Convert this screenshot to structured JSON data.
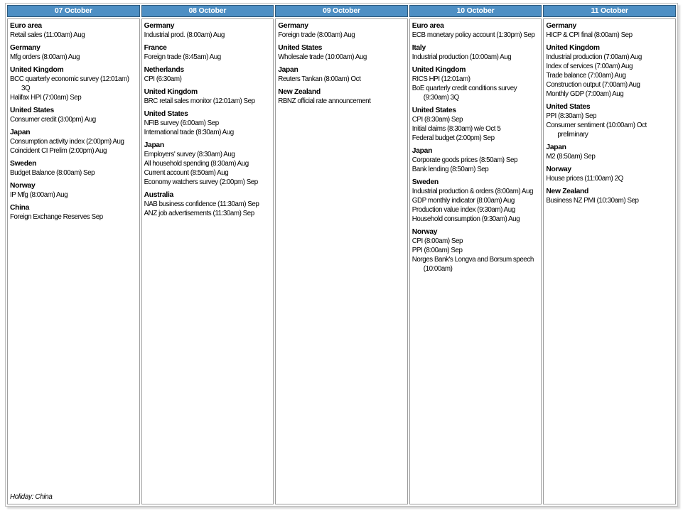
{
  "colors": {
    "header_bg": "#4E8FC4",
    "header_border": "#2e5a7d",
    "header_text": "#ffffff",
    "body_border": "#9e9e9e"
  },
  "table": {
    "columns": [
      {
        "date": "07 October",
        "groups": [
          {
            "country": "Euro area",
            "events": [
              "Retail sales (11:00am) Aug"
            ]
          },
          {
            "country": "Germany",
            "events": [
              "Mfg orders (8:00am) Aug"
            ]
          },
          {
            "country": "United Kingdom",
            "events": [
              "BCC quarterly economic survey (12:01am) 3Q",
              "Halifax HPI (7:00am) Sep"
            ]
          },
          {
            "country": "United States",
            "events": [
              "Consumer credit (3:00pm) Aug"
            ]
          },
          {
            "country": "Japan",
            "events": [
              "Consumption activity index (2:00pm) Aug",
              "Coincident CI Prelim (2:00pm) Aug"
            ]
          },
          {
            "country": "Sweden",
            "events": [
              "Budget Balance (8:00am) Sep"
            ]
          },
          {
            "country": "Norway",
            "events": [
              "IP Mfg (8:00am) Aug"
            ]
          },
          {
            "country": "China",
            "events": [
              "Foreign Exchange Reserves Sep"
            ]
          }
        ],
        "holiday": "Holiday: China"
      },
      {
        "date": "08 October",
        "groups": [
          {
            "country": "Germany",
            "events": [
              "Industrial prod. (8:00am) Aug"
            ]
          },
          {
            "country": "France",
            "events": [
              "Foreign trade (8:45am) Aug"
            ]
          },
          {
            "country": "Netherlands",
            "events": [
              "CPI (6:30am)"
            ]
          },
          {
            "country": "United Kingdom",
            "events": [
              "BRC retail sales monitor (12:01am) Sep"
            ]
          },
          {
            "country": "United States",
            "events": [
              "NFIB survey (6:00am) Sep",
              "International trade (8:30am) Aug"
            ]
          },
          {
            "country": "Japan",
            "events": [
              "Employers' survey (8:30am) Aug",
              "All household spending (8:30am) Aug",
              "Current account (8:50am) Aug",
              "Economy watchers survey (2:00pm) Sep"
            ]
          },
          {
            "country": "Australia",
            "events": [
              "NAB business confidence (11:30am) Sep",
              "ANZ job advertisements (11:30am) Sep"
            ]
          }
        ]
      },
      {
        "date": "09 October",
        "groups": [
          {
            "country": "Germany",
            "events": [
              "Foreign trade (8:00am) Aug"
            ]
          },
          {
            "country": "United States",
            "events": [
              "Wholesale trade (10:00am) Aug"
            ]
          },
          {
            "country": "Japan",
            "events": [
              "Reuters Tankan (8:00am) Oct"
            ]
          },
          {
            "country": "New Zealand",
            "events": [
              "RBNZ official rate announcement"
            ]
          }
        ]
      },
      {
        "date": "10 October",
        "groups": [
          {
            "country": "Euro area",
            "events": [
              "ECB monetary policy account (1:30pm) Sep"
            ]
          },
          {
            "country": "Italy",
            "events": [
              "Industrial production (10:00am) Aug"
            ]
          },
          {
            "country": "United Kingdom",
            "events": [
              "RICS HPI (12:01am)",
              "BoE quarterly credit conditions survey (9:30am) 3Q"
            ]
          },
          {
            "country": "United States",
            "events": [
              "CPI (8:30am) Sep",
              "Initial claims (8:30am) w/e Oct 5",
              "Federal budget (2:00pm) Sep"
            ]
          },
          {
            "country": "Japan",
            "events": [
              "Corporate goods prices (8:50am) Sep",
              "Bank lending (8:50am) Sep"
            ]
          },
          {
            "country": "Sweden",
            "events": [
              "Industrial production & orders (8:00am) Aug",
              "GDP monthly indicator (8:00am) Aug",
              "Production value index (9:30am) Aug",
              "Household consumption (9:30am) Aug"
            ]
          },
          {
            "country": "Norway",
            "events": [
              "CPI (8:00am) Sep",
              "PPI (8:00am) Sep",
              "Norges Bank's Longva and Borsum speech (10:00am)"
            ]
          }
        ]
      },
      {
        "date": "11 October",
        "groups": [
          {
            "country": "Germany",
            "events": [
              "HICP & CPI final (8:00am) Sep"
            ]
          },
          {
            "country": "United Kingdom",
            "events": [
              "Industrial production (7:00am) Aug",
              "Index of services (7:00am) Aug",
              "Trade balance (7:00am) Aug",
              "Construction output (7:00am) Aug",
              "Monthly GDP (7:00am) Aug"
            ]
          },
          {
            "country": "United States",
            "events": [
              "PPI (8:30am) Sep",
              "Consumer sentiment (10:00am) Oct preliminary"
            ]
          },
          {
            "country": "Japan",
            "events": [
              "M2 (8:50am) Sep"
            ]
          },
          {
            "country": "Norway",
            "events": [
              "House prices (11:00am) 2Q"
            ]
          },
          {
            "country": "New Zealand",
            "events": [
              "Business NZ PMI (10:30am) Sep"
            ]
          }
        ]
      }
    ]
  }
}
